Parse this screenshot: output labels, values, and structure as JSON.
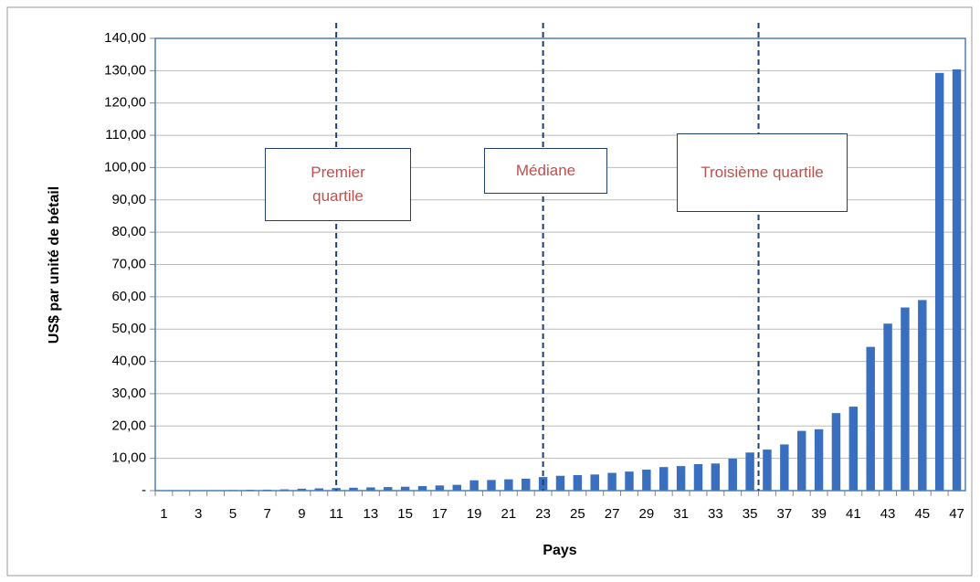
{
  "chart_data": {
    "type": "bar",
    "y_label": "US$ par unité de bétail",
    "x_label": "Pays",
    "categories": [
      "1",
      null,
      "3",
      null,
      "5",
      null,
      "7",
      null,
      "9",
      null,
      "11",
      null,
      "13",
      null,
      "15",
      null,
      "17",
      null,
      "19",
      null,
      "21",
      null,
      "23",
      null,
      "25",
      null,
      "27",
      null,
      "29",
      null,
      "31",
      null,
      "33",
      null,
      "35",
      null,
      "37",
      null,
      "39",
      null,
      "41",
      null,
      "43",
      null,
      "45",
      null,
      "47"
    ],
    "values": [
      0.05,
      0.1,
      0.1,
      0.15,
      0.2,
      0.25,
      0.3,
      0.4,
      0.6,
      0.7,
      0.8,
      0.9,
      1.0,
      1.1,
      1.2,
      1.4,
      1.6,
      1.8,
      3.2,
      3.3,
      3.5,
      3.7,
      4.2,
      4.6,
      4.8,
      5.0,
      5.5,
      5.9,
      6.5,
      7.3,
      7.6,
      8.2,
      8.4,
      9.9,
      11.8,
      12.7,
      14.3,
      18.5,
      19.0,
      24.0,
      26.0,
      44.5,
      51.7,
      56.7,
      59.0,
      129.3,
      130.4
    ],
    "color": "#3a6fbf",
    "ylim": [
      0,
      140
    ],
    "yticks": [
      {
        "value": 0,
        "label": "-"
      },
      {
        "value": 10,
        "label": "10,00"
      },
      {
        "value": 20,
        "label": "20,00"
      },
      {
        "value": 30,
        "label": "30,00"
      },
      {
        "value": 40,
        "label": "40,00"
      },
      {
        "value": 50,
        "label": "50,00"
      },
      {
        "value": 60,
        "label": "60,00"
      },
      {
        "value": 70,
        "label": "70,00"
      },
      {
        "value": 80,
        "label": "80,00"
      },
      {
        "value": 90,
        "label": "90,00"
      },
      {
        "value": 100,
        "label": "100,00"
      },
      {
        "value": 110,
        "label": "110,00"
      },
      {
        "value": 120,
        "label": "120,00"
      },
      {
        "value": 130,
        "label": "130,00"
      },
      {
        "value": 140,
        "label": "140,00"
      }
    ],
    "grid": true,
    "annotations": [
      {
        "text": "Premier quartile",
        "x": 11
      },
      {
        "text": "Médiane",
        "x": 23
      },
      {
        "text": "Troisième quartile",
        "x": 35.5
      }
    ]
  }
}
